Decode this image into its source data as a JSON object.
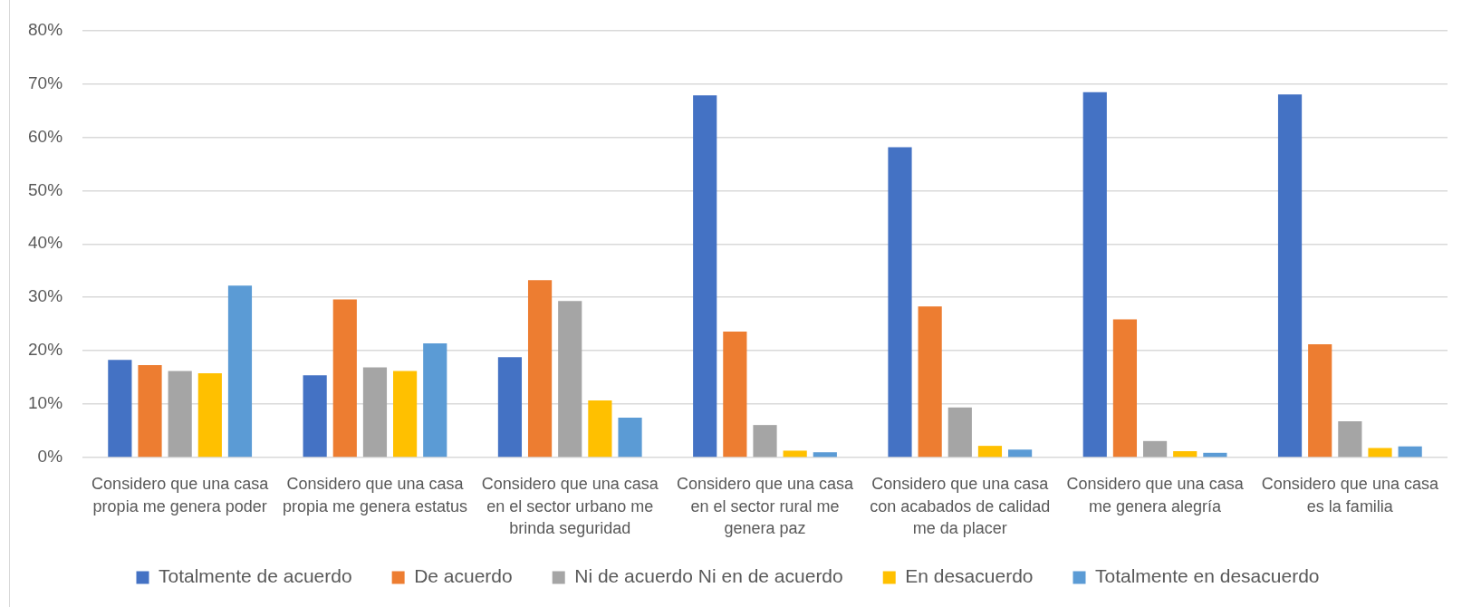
{
  "chart_data": {
    "type": "bar",
    "categories": [
      "Considero que una casa propia me genera poder",
      "Considero que una casa propia me genera estatus",
      "Considero que una casa en el sector urbano me brinda seguridad",
      "Considero que una casa en el sector rural me genera paz",
      "Considero que una casa con acabados de calidad me da placer",
      "Considero que una casa me genera alegría",
      "Considero que una casa es la familia"
    ],
    "series": [
      {
        "name": "Totalmente de acuerdo",
        "color": "#4472c4",
        "values": [
          18.3,
          15.4,
          18.8,
          67.8,
          58.1,
          68.4,
          68.0
        ]
      },
      {
        "name": "De acuerdo",
        "color": "#ed7d31",
        "values": [
          17.3,
          29.6,
          33.2,
          23.6,
          28.3,
          25.9,
          21.2
        ]
      },
      {
        "name": "Ni de acuerdo Ni en de acuerdo",
        "color": "#a5a5a5",
        "values": [
          16.2,
          16.9,
          29.3,
          6.1,
          9.4,
          3.1,
          6.8
        ]
      },
      {
        "name": "En desacuerdo",
        "color": "#ffc000",
        "values": [
          15.8,
          16.2,
          10.7,
          1.3,
          2.2,
          1.2,
          1.8
        ]
      },
      {
        "name": "Totalmente en desacuerdo",
        "color": "#5b9bd5",
        "values": [
          32.2,
          21.4,
          7.5,
          1.0,
          1.5,
          0.9,
          2.1
        ]
      }
    ],
    "ylim": [
      0,
      80
    ],
    "yticks": [
      {
        "value": 0,
        "label": "0%"
      },
      {
        "value": 10,
        "label": "10%"
      },
      {
        "value": 20,
        "label": "20%"
      },
      {
        "value": 30,
        "label": "30%"
      },
      {
        "value": 40,
        "label": "40%"
      },
      {
        "value": 50,
        "label": "50%"
      },
      {
        "value": 60,
        "label": "60%"
      },
      {
        "value": 70,
        "label": "70%"
      },
      {
        "value": 80,
        "label": "80%"
      }
    ],
    "grid": "y",
    "legend": "bottom"
  }
}
